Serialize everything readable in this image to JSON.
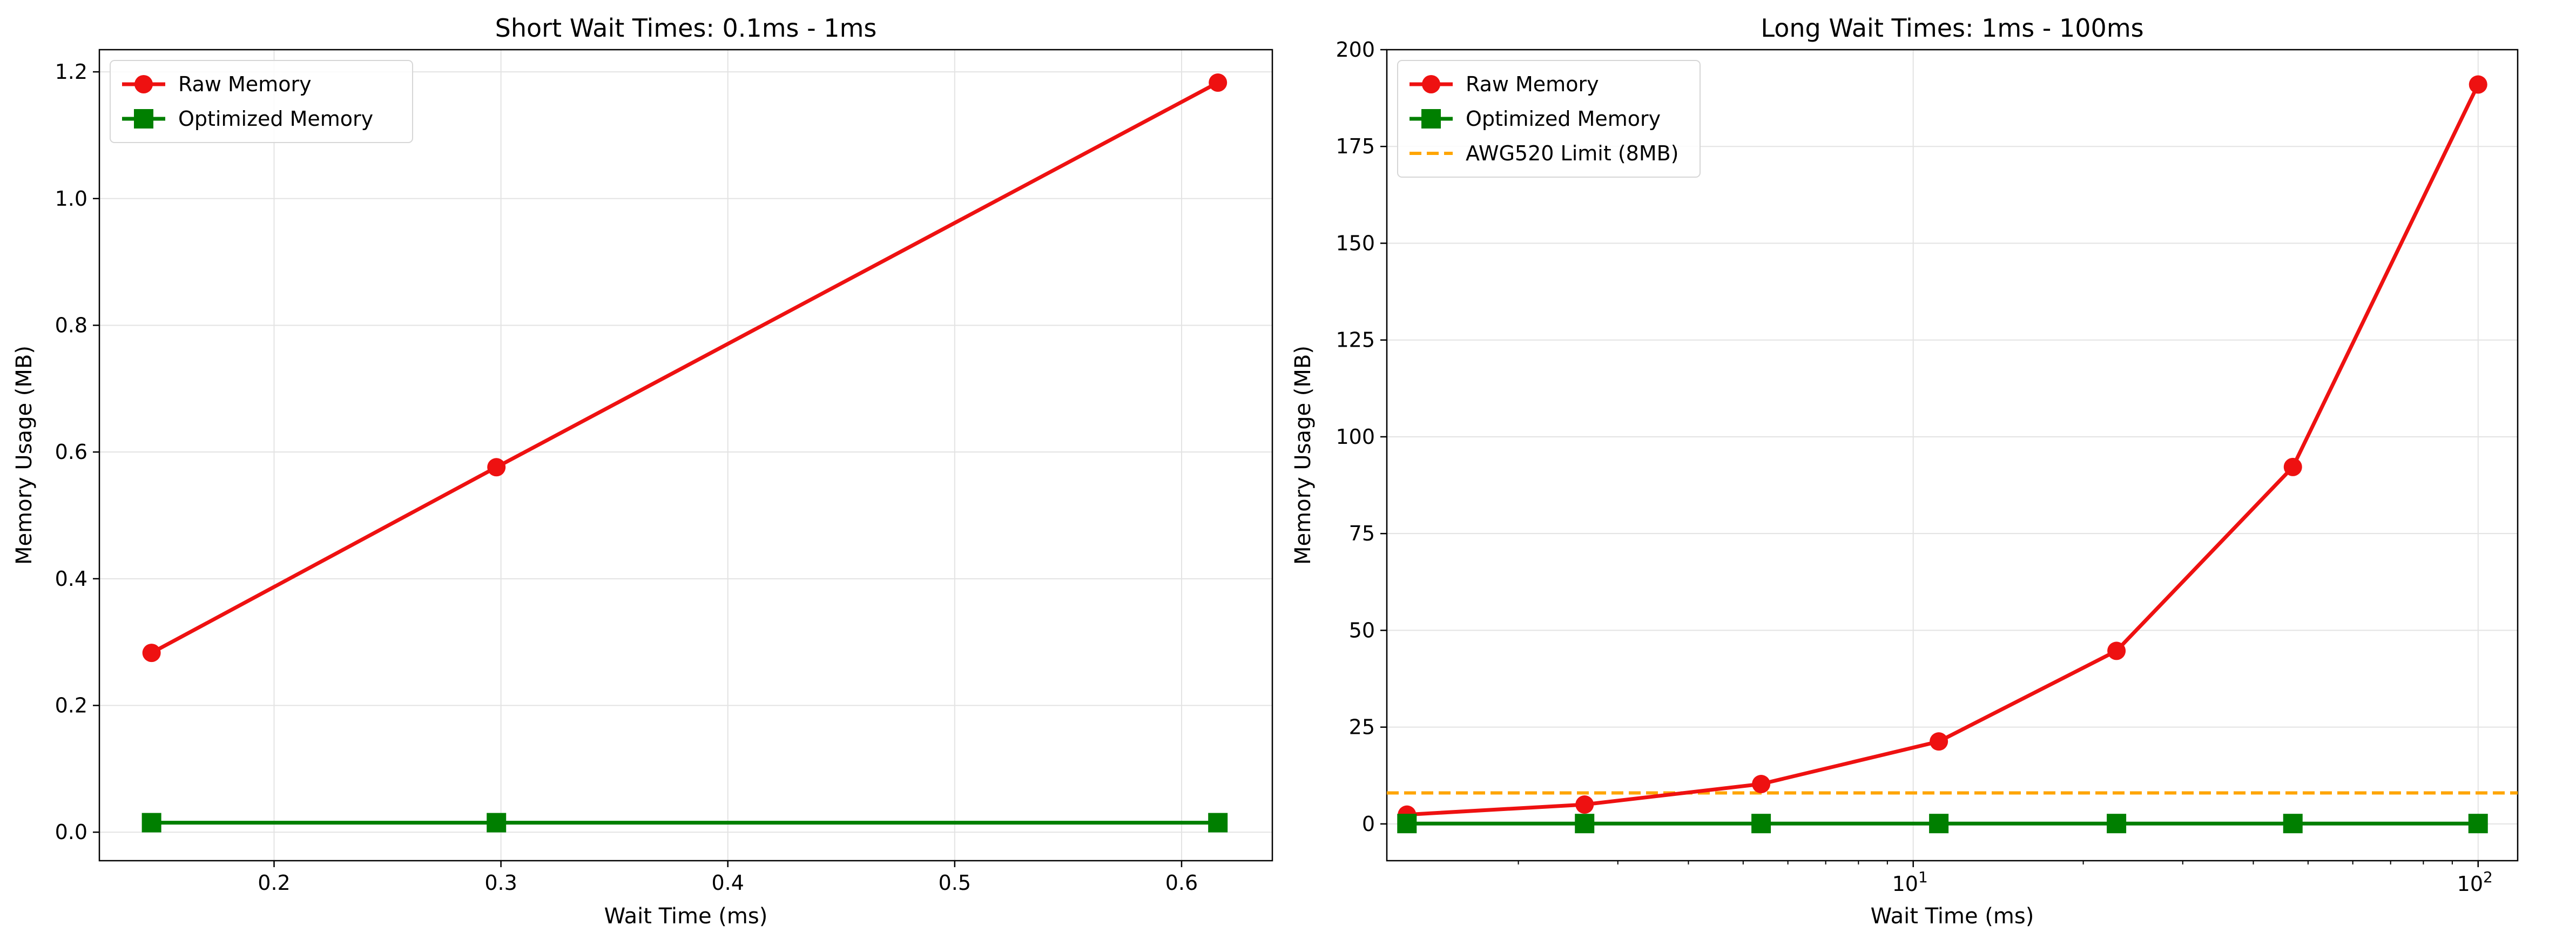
{
  "chart_data": [
    {
      "type": "line",
      "title": "Short Wait Times: 0.1ms - 1ms",
      "xlabel": "Wait Time (ms)",
      "ylabel": "Memory Usage (MB)",
      "xscale": "linear",
      "xlim": [
        0.123,
        0.64
      ],
      "ylim": [
        -0.045,
        1.235
      ],
      "xticks": [
        0.2,
        0.3,
        0.4,
        0.5,
        0.6
      ],
      "xtick_labels": [
        "0.2",
        "0.3",
        "0.4",
        "0.5",
        "0.6"
      ],
      "yticks": [
        0.0,
        0.2,
        0.4,
        0.6,
        0.8,
        1.0,
        1.2
      ],
      "ytick_labels": [
        "0.0",
        "0.2",
        "0.4",
        "0.6",
        "0.8",
        "1.0",
        "1.2"
      ],
      "grid": true,
      "legend_position": "top-left",
      "x": [
        0.146,
        0.298,
        0.616
      ],
      "series": [
        {
          "name": "Raw Memory",
          "color": "#ee1111",
          "marker": "circle",
          "linestyle": "solid",
          "values": [
            0.283,
            0.576,
            1.183
          ]
        },
        {
          "name": "Optimized Memory",
          "color": "#007f00",
          "marker": "square",
          "linestyle": "solid",
          "values": [
            0.015,
            0.015,
            0.015
          ]
        }
      ]
    },
    {
      "type": "line",
      "title": "Long Wait Times: 1ms - 100ms",
      "xlabel": "Wait Time (ms)",
      "ylabel": "Memory Usage (MB)",
      "xscale": "log",
      "xlim": [
        1.17,
        117.5
      ],
      "ylim": [
        -9.5,
        200
      ],
      "major_xticks": [
        10,
        100
      ],
      "major_xtick_labels": [
        {
          "base": "10",
          "exp": "1"
        },
        {
          "base": "10",
          "exp": "2"
        }
      ],
      "yticks": [
        0,
        25,
        50,
        75,
        100,
        125,
        150,
        175,
        200
      ],
      "ytick_labels": [
        "0",
        "25",
        "50",
        "75",
        "100",
        "125",
        "150",
        "175",
        "200"
      ],
      "grid": true,
      "legend_position": "top-left",
      "x": [
        1.27,
        2.62,
        5.38,
        11.1,
        22.9,
        47.0,
        100
      ],
      "series": [
        {
          "name": "Raw Memory",
          "color": "#ee1111",
          "marker": "circle",
          "linestyle": "solid",
          "values": [
            2.4,
            5.0,
            10.3,
            21.3,
            44.7,
            92.2,
            191
          ]
        },
        {
          "name": "Optimized Memory",
          "color": "#007f00",
          "marker": "square",
          "linestyle": "solid",
          "values": [
            0.1,
            0.1,
            0.1,
            0.1,
            0.1,
            0.1,
            0.1
          ]
        }
      ],
      "reference_lines": [
        {
          "name": "AWG520 Limit (8MB)",
          "y": 8,
          "color": "#ffa500",
          "linestyle": "dashed"
        }
      ]
    }
  ]
}
